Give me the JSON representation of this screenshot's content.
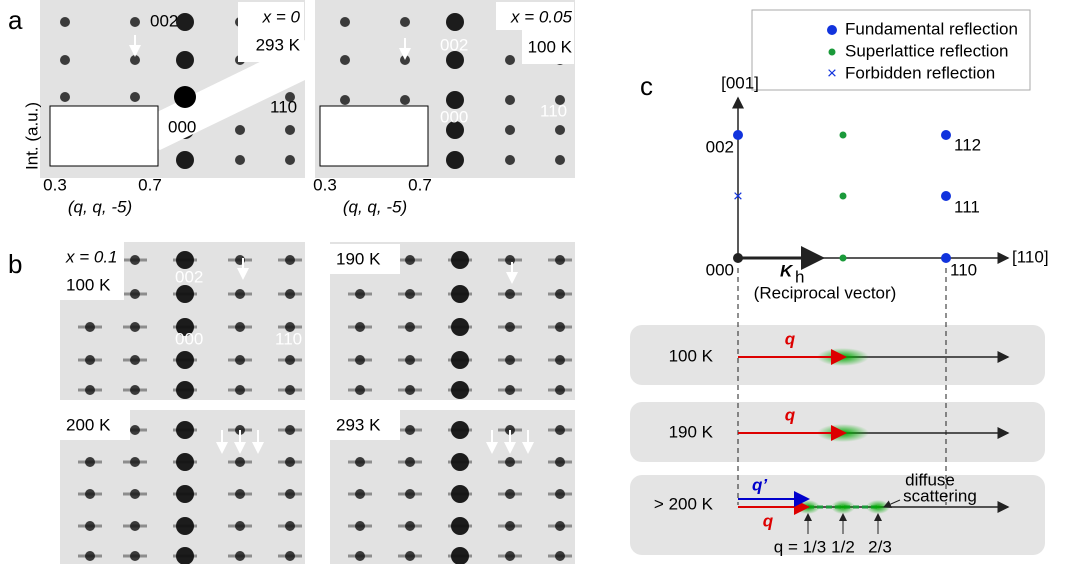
{
  "panel_a": {
    "label": "a",
    "left": {
      "composition": "x = 0",
      "temperature": "293 K",
      "spots": [
        "002",
        "000",
        "110"
      ],
      "inset": {
        "y_label": "Int. (a.u.)",
        "x_ticks": [
          "0.3",
          "0.7"
        ],
        "x_label": "(q, q, -5)"
      }
    },
    "right": {
      "composition": "x = 0.05",
      "temperature": "100 K",
      "spots": [
        "002",
        "000",
        "110"
      ],
      "inset": {
        "x_ticks": [
          "0.3",
          "0.7"
        ],
        "x_label": "(q, q, -5)"
      }
    }
  },
  "panel_b": {
    "label": "b",
    "images": [
      {
        "composition": "x = 0.1",
        "temperature": "100 K",
        "spots": [
          "002",
          "000",
          "110"
        ]
      },
      {
        "temperature": "190 K"
      },
      {
        "temperature": "200 K"
      },
      {
        "temperature": "293 K"
      }
    ]
  },
  "panel_c": {
    "label": "c",
    "legend": [
      "Fundamental reflection",
      "Superlattice reflection",
      "Forbidden reflection"
    ],
    "axes": [
      "[001]",
      "[110]"
    ],
    "points": [
      "002",
      "112",
      "111",
      "000",
      "110"
    ],
    "vector": {
      "symbol": "K",
      "subscript": "h",
      "caption": "(Reciprocal vector)"
    },
    "rows": [
      {
        "temperature": "100 K",
        "vector": "q"
      },
      {
        "temperature": "190 K",
        "vector": "q"
      },
      {
        "temperature": "> 200 K",
        "vectors": [
          "q’",
          "q"
        ],
        "annotation": [
          "diffuse",
          "scattering"
        ],
        "positions": [
          "q = 1/3",
          "1/2",
          "2/3"
        ]
      }
    ]
  }
}
